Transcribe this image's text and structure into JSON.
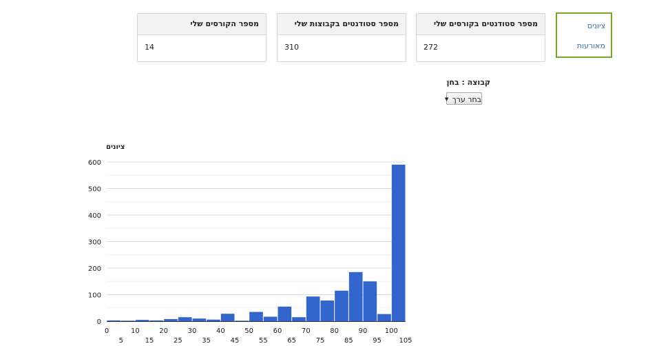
{
  "nav": {
    "items": [
      {
        "label": "ציונים"
      },
      {
        "label": "מאורעות"
      }
    ],
    "border_color": "#7ba428"
  },
  "cards": [
    {
      "title": "מספר סטודנטים בקורסים שלי",
      "value": "272"
    },
    {
      "title": "מספר סטודנטים בקבוצות שלי",
      "value": "310"
    },
    {
      "title": "מספר הקורסים שלי",
      "value": "14"
    }
  ],
  "filter": {
    "label": "קבוצה : בחן",
    "select_value": "בחר ערך"
  },
  "chart_data": {
    "type": "bar",
    "title": "ציונים",
    "xlabel": "",
    "ylabel": "",
    "ylim": [
      0,
      600
    ],
    "y_ticks": [
      0,
      100,
      200,
      300,
      400,
      500,
      600
    ],
    "x_ticks": [
      0,
      5,
      10,
      15,
      20,
      25,
      30,
      35,
      40,
      45,
      50,
      55,
      60,
      65,
      70,
      75,
      80,
      85,
      90,
      95,
      100,
      105
    ],
    "xlim": [
      0,
      105
    ],
    "bin_width": 5,
    "bins": [
      0,
      5,
      10,
      15,
      20,
      25,
      30,
      35,
      40,
      45,
      50,
      55,
      60,
      65,
      70,
      75,
      80,
      85,
      90,
      95,
      100
    ],
    "values": [
      3,
      2,
      5,
      3,
      8,
      15,
      10,
      6,
      28,
      2,
      35,
      17,
      55,
      15,
      93,
      78,
      115,
      185,
      150,
      27,
      590
    ],
    "bar_color": "#3366cc",
    "grid": true
  }
}
